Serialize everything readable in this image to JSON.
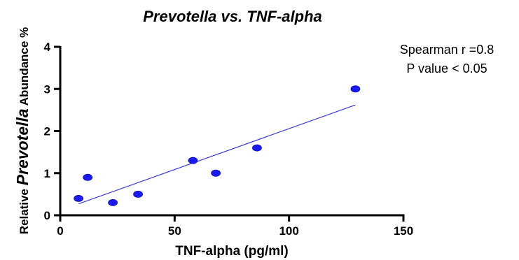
{
  "chart_data": {
    "type": "scatter",
    "title": "Prevotella vs. TNF-alpha",
    "xlabel": "TNF-alpha (pg/ml)",
    "ylabel": {
      "prefix": "Relative ",
      "italic": "Prevotella",
      "suffix": " Abundance %"
    },
    "xlim": [
      0,
      150
    ],
    "ylim": [
      0,
      4
    ],
    "xticks": [
      "0",
      "50",
      "100",
      "150"
    ],
    "yticks": [
      "0",
      "1",
      "2",
      "3",
      "4"
    ],
    "grid": false,
    "points": [
      {
        "x": 8,
        "y": 0.4
      },
      {
        "x": 12,
        "y": 0.9
      },
      {
        "x": 23,
        "y": 0.3
      },
      {
        "x": 34,
        "y": 0.5
      },
      {
        "x": 58,
        "y": 1.3
      },
      {
        "x": 68,
        "y": 1.0
      },
      {
        "x": 86,
        "y": 1.6
      },
      {
        "x": 129,
        "y": 3.0
      }
    ],
    "fit_line": {
      "x": [
        8,
        129
      ],
      "y": [
        0.27,
        2.62
      ]
    },
    "annotations": [
      "Spearman r =0.8",
      "P value < 0.05"
    ],
    "point_color": "#1a1aee",
    "line_color": "#3a3ad8"
  }
}
